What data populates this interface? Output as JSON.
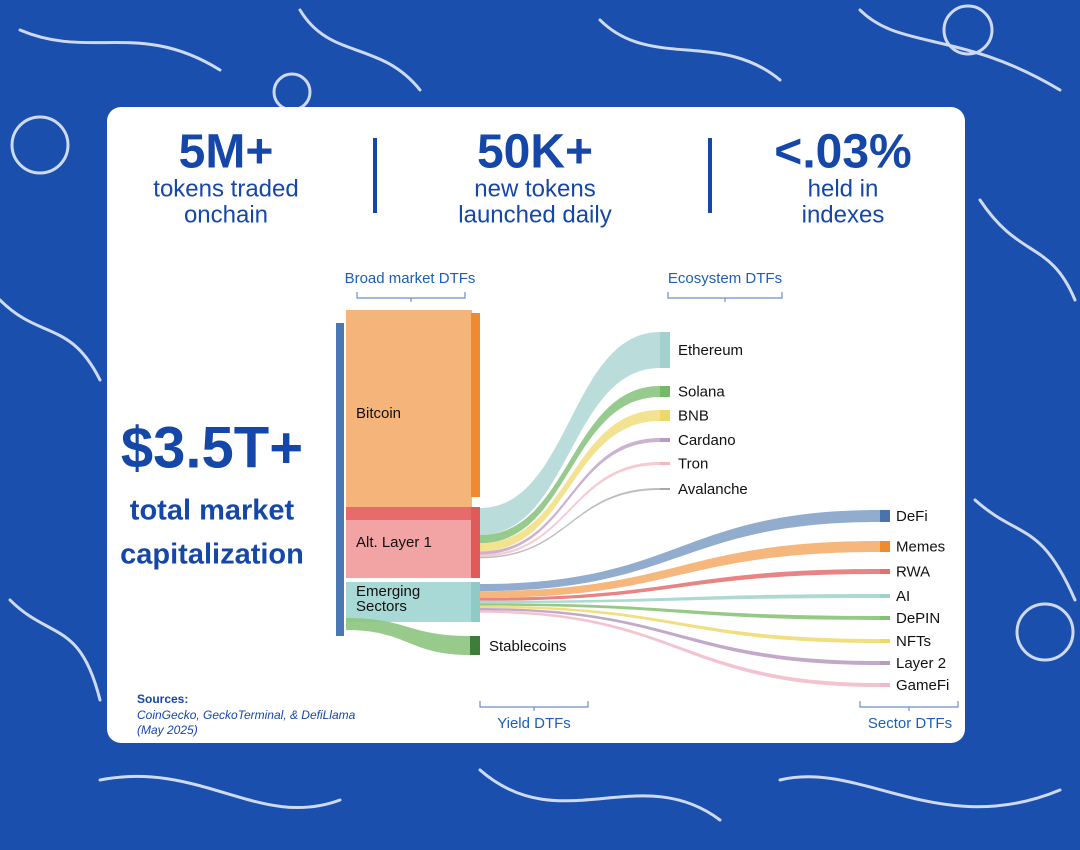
{
  "stats": [
    {
      "value": "5M+",
      "label": [
        "tokens traded",
        "onchain"
      ]
    },
    {
      "value": "50K+",
      "label": [
        "new tokens",
        "launched daily"
      ]
    },
    {
      "value": "<.03%",
      "label": [
        "held in",
        "indexes"
      ]
    }
  ],
  "headline": {
    "value": "$3.5T+",
    "label": [
      "total market",
      "capitalization"
    ]
  },
  "sankey": {
    "groups": {
      "broad": "Broad market DTFs",
      "ecosystem": "Ecosystem DTFs",
      "yield": "Yield DTFs",
      "sector": "Sector DTFs"
    },
    "sources": {
      "bitcoin": "Bitcoin",
      "alt_layer_1": "Alt. Layer 1",
      "emerging_sectors": [
        "Emerging",
        "Sectors"
      ],
      "stablecoins": "Stablecoins"
    },
    "ecosystem": [
      "Ethereum",
      "Solana",
      "BNB",
      "Cardano",
      "Tron",
      "Avalanche"
    ],
    "sector": [
      "DeFi",
      "Memes",
      "RWA",
      "AI",
      "DePIN",
      "NFTs",
      "Layer 2",
      "GameFi"
    ]
  },
  "footnote": {
    "heading": "Sources:",
    "lines": [
      "CoinGecko, GeckoTerminal, & DefiLlama",
      "(May 2025)"
    ]
  }
}
